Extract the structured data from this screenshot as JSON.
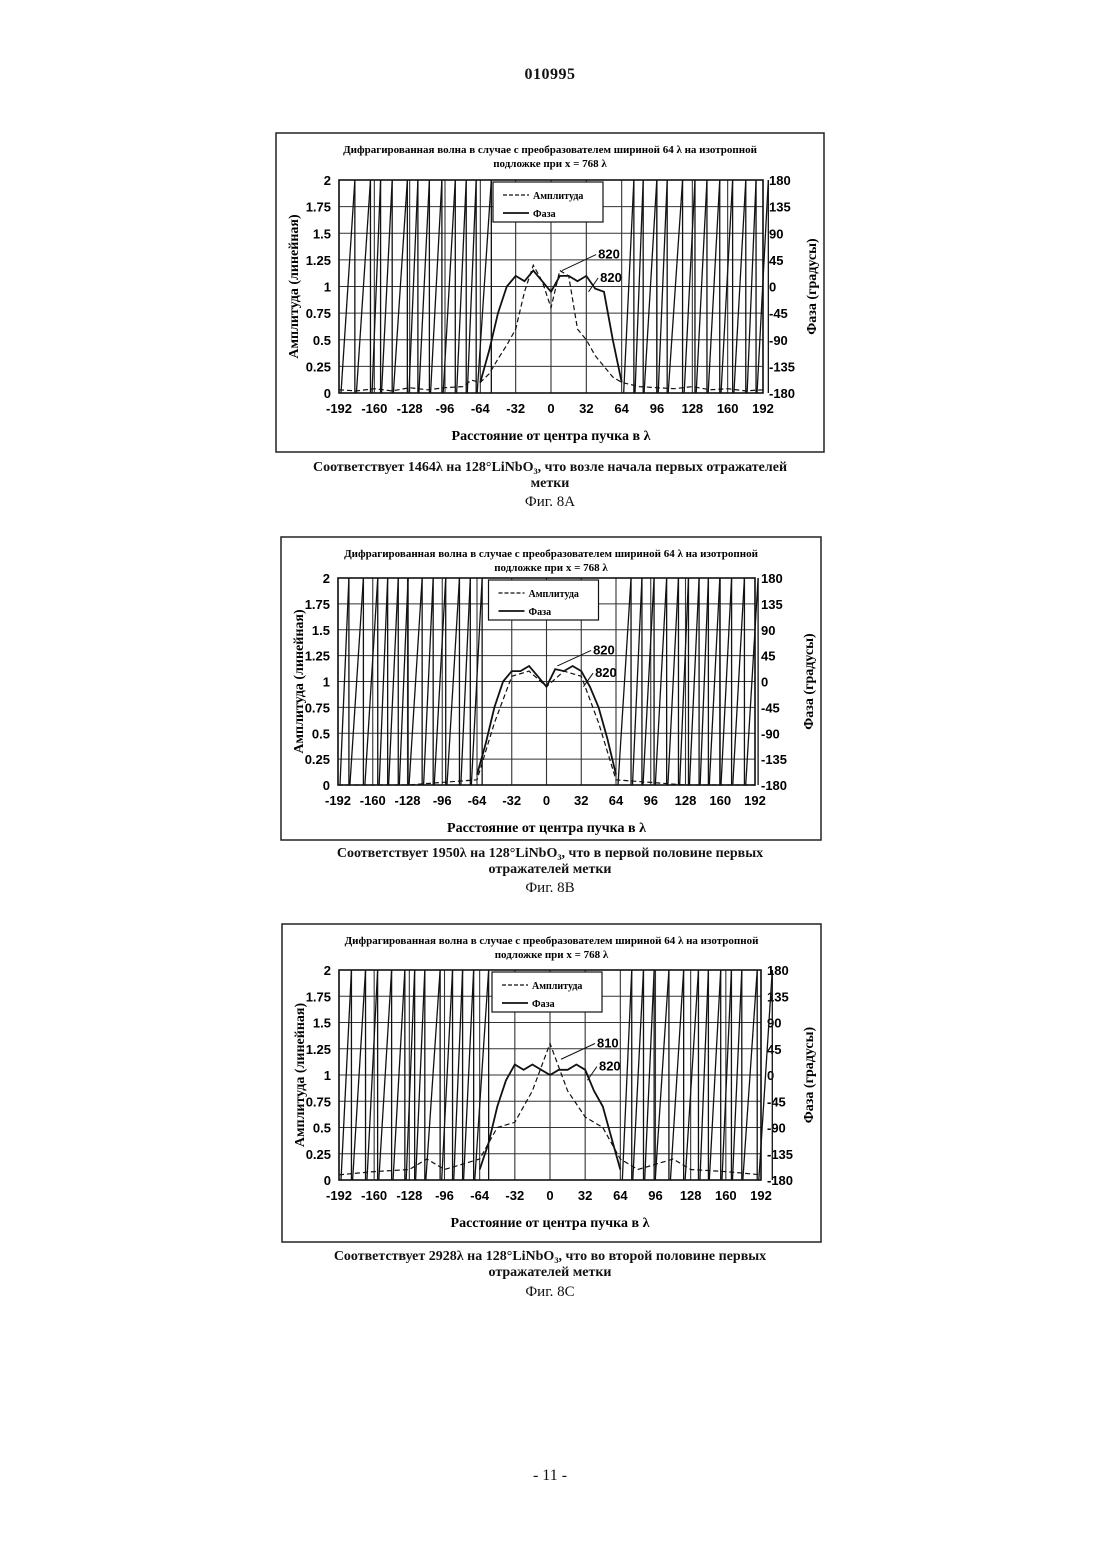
{
  "page": {
    "header_number": "010995",
    "footer": "- 11 -"
  },
  "figures": [
    {
      "id": "8A",
      "title_line1": "Дифрагированная волна в случае с преобразователем шириной 64  λ  на изотропной",
      "title_line2": "подложке при x = 768 λ",
      "caption_line1": "Соответствует   1464λ на 128°LiNbO₃, что возле начала первых отражателей",
      "caption_line2": "метки",
      "label": "Фиг. 8A",
      "legend": [
        "Амплитуда",
        "Фаза"
      ],
      "refs": [
        "820",
        "820"
      ]
    },
    {
      "id": "8B",
      "title_line1": "Дифрагированная волна в случае с преобразователем шириной 64  λ  на изотропной",
      "title_line2": "подложке при x = 768 λ",
      "caption_line1": "Соответствует   1950λ на 128°LiNbO₃, что в первой половине первых",
      "caption_line2": "отражателей метки",
      "label": "Фиг. 8B",
      "legend": [
        "Амплитуда",
        "Фаза"
      ],
      "refs": [
        "820",
        "820"
      ]
    },
    {
      "id": "8C",
      "title_line1": "Дифрагированная волна в случае с преобразователем шириной 64  λ  на изотропной",
      "title_line2": "подложке при x = 768 λ",
      "caption_line1": "Соответствует   2928λ на 128°LiNbO₃, что во второй половине первых",
      "caption_line2": "отражателей метки",
      "label": "Фиг. 8C",
      "legend": [
        "Амплитуда",
        "Фаза"
      ],
      "refs": [
        "810",
        "820"
      ]
    }
  ],
  "chart_data": [
    {
      "type": "line",
      "title": "Дифрагированная волна в случае с преобразователем шириной 64 λ на изотропной подложке при x = 768 λ",
      "xlabel": "Расстояние от центра пучка в λ",
      "ylabel": "Амплитуда (линейная)",
      "y2label": "Фаза (градусы)",
      "xlim": [
        -192,
        192
      ],
      "ylim": [
        0,
        2
      ],
      "y2lim": [
        -180,
        180
      ],
      "x_ticks": [
        "-192",
        "-160",
        "-128",
        "-96",
        "-64",
        "-32",
        "0",
        "32",
        "64",
        "96",
        "128",
        "160",
        "192"
      ],
      "y_ticks": [
        "0",
        "0.25",
        "0.5",
        "0.75",
        "1",
        "1.25",
        "1.5",
        "1.75",
        "2"
      ],
      "y2_ticks": [
        "-180",
        "-135",
        "-90",
        "-45",
        "0",
        "45",
        "90",
        "135",
        "180"
      ],
      "grid": true,
      "legend_position": "top-center",
      "series": [
        {
          "name": "Амплитуда",
          "x": [
            -192,
            -176,
            -160,
            -144,
            -128,
            -112,
            -96,
            -80,
            -72,
            -64,
            -56,
            -48,
            -40,
            -32,
            -24,
            -16,
            -8,
            0,
            8,
            16,
            24,
            32,
            40,
            48,
            56,
            64,
            72,
            80,
            96,
            112,
            128,
            144,
            160,
            176,
            192
          ],
          "y": [
            0.03,
            0.02,
            0.04,
            0.02,
            0.05,
            0.03,
            0.05,
            0.06,
            0.12,
            0.1,
            0.18,
            0.32,
            0.45,
            0.6,
            0.95,
            1.2,
            1.05,
            0.8,
            1.15,
            1.1,
            0.6,
            0.5,
            0.35,
            0.25,
            0.15,
            0.1,
            0.08,
            0.06,
            0.05,
            0.04,
            0.06,
            0.03,
            0.04,
            0.02,
            0.03
          ]
        },
        {
          "name": "Фаза",
          "x": [
            -64,
            -56,
            -48,
            -40,
            -32,
            -24,
            -16,
            -8,
            0,
            8,
            16,
            24,
            32,
            40,
            48,
            56,
            64
          ],
          "y": [
            0.1,
            0.4,
            0.75,
            1.0,
            1.1,
            1.05,
            1.15,
            1.05,
            0.95,
            1.1,
            1.1,
            1.05,
            1.1,
            0.98,
            0.95,
            0.5,
            0.1
          ]
        }
      ]
    },
    {
      "type": "line",
      "title": "Дифрагированная волна в случае с преобразователем шириной 64 λ на изотропной подложке при x = 768 λ",
      "xlabel": "Расстояние от центра пучка в λ",
      "ylabel": "Амплитуда (линейная)",
      "y2label": "Фаза (градусы)",
      "xlim": [
        -192,
        192
      ],
      "ylim": [
        0,
        2
      ],
      "y2lim": [
        -180,
        180
      ],
      "x_ticks": [
        "-192",
        "-160",
        "-128",
        "-96",
        "-64",
        "-32",
        "0",
        "32",
        "64",
        "96",
        "128",
        "160",
        "192"
      ],
      "y_ticks": [
        "0",
        "0.25",
        "0.5",
        "0.75",
        "1",
        "1.25",
        "1.5",
        "1.75",
        "2"
      ],
      "y2_ticks": [
        "-180",
        "-135",
        "-90",
        "-45",
        "0",
        "45",
        "90",
        "135",
        "180"
      ],
      "grid": true,
      "legend_position": "top-center",
      "series": [
        {
          "name": "Амплитуда",
          "x": [
            -192,
            -128,
            -64,
            -48,
            -32,
            -16,
            0,
            16,
            32,
            48,
            64,
            128,
            192
          ],
          "y": [
            0.0,
            0.0,
            0.05,
            0.6,
            1.05,
            1.1,
            0.95,
            1.1,
            1.05,
            0.6,
            0.05,
            0.0,
            0.0
          ]
        },
        {
          "name": "Фаза",
          "x": [
            -64,
            -56,
            -48,
            -40,
            -32,
            -24,
            -16,
            -8,
            0,
            8,
            16,
            24,
            32,
            40,
            48,
            56,
            64
          ],
          "y": [
            0.1,
            0.4,
            0.75,
            1.0,
            1.1,
            1.1,
            1.15,
            1.05,
            0.95,
            1.12,
            1.1,
            1.15,
            1.1,
            0.95,
            0.75,
            0.45,
            0.1
          ]
        }
      ]
    },
    {
      "type": "line",
      "title": "Дифрагированная волна в случае с преобразователем шириной 64 λ на изотропной подложке при x = 768 λ",
      "xlabel": "Расстояние от центра пучка в λ",
      "ylabel": "Амплитуда (линейная)",
      "y2label": "Фаза (градусы)",
      "xlim": [
        -192,
        192
      ],
      "ylim": [
        0,
        2
      ],
      "y2lim": [
        -180,
        180
      ],
      "x_ticks": [
        "-192",
        "-160",
        "-128",
        "-96",
        "-64",
        "-32",
        "0",
        "32",
        "64",
        "96",
        "128",
        "160",
        "192"
      ],
      "y_ticks": [
        "0",
        "0.25",
        "0.5",
        "0.75",
        "1",
        "1.25",
        "1.5",
        "1.75",
        "2"
      ],
      "y2_ticks": [
        "-180",
        "-135",
        "-90",
        "-45",
        "0",
        "45",
        "90",
        "135",
        "180"
      ],
      "grid": true,
      "legend_position": "top-center",
      "series": [
        {
          "name": "Амплитуда",
          "x": [
            -192,
            -160,
            -128,
            -112,
            -96,
            -80,
            -64,
            -48,
            -32,
            -16,
            0,
            16,
            32,
            48,
            64,
            80,
            96,
            112,
            128,
            160,
            192
          ],
          "y": [
            0.05,
            0.08,
            0.1,
            0.2,
            0.1,
            0.15,
            0.2,
            0.5,
            0.55,
            0.85,
            1.3,
            0.85,
            0.6,
            0.5,
            0.2,
            0.1,
            0.15,
            0.2,
            0.1,
            0.08,
            0.05
          ]
        },
        {
          "name": "Фаза",
          "x": [
            -64,
            -56,
            -48,
            -40,
            -32,
            -24,
            -16,
            -8,
            0,
            8,
            16,
            24,
            32,
            40,
            48,
            56,
            64
          ],
          "y": [
            0.1,
            0.35,
            0.7,
            0.95,
            1.1,
            1.05,
            1.1,
            1.05,
            1.0,
            1.05,
            1.05,
            1.1,
            1.05,
            0.85,
            0.7,
            0.4,
            0.1
          ]
        }
      ]
    }
  ]
}
